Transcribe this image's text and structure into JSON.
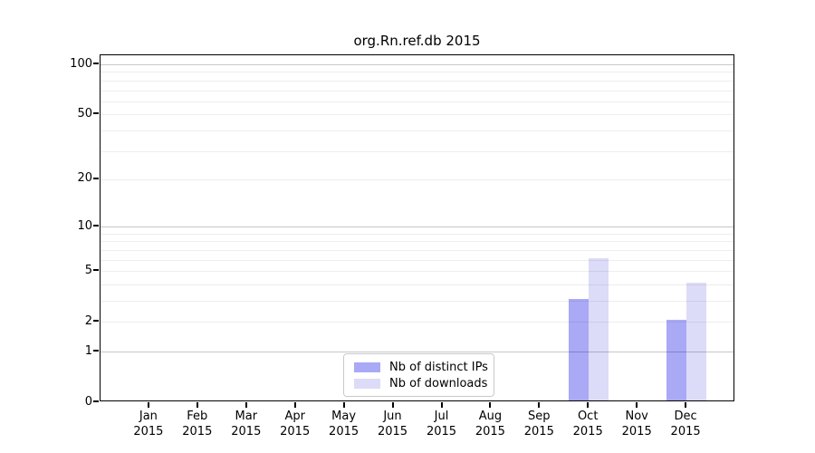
{
  "chart_data": {
    "type": "bar",
    "title": "org.Rn.ref.db 2015",
    "year_label": "2015",
    "categories": [
      "Jan",
      "Feb",
      "Mar",
      "Apr",
      "May",
      "Jun",
      "Jul",
      "Aug",
      "Sep",
      "Oct",
      "Nov",
      "Dec"
    ],
    "series": [
      {
        "name": "Nb of distinct IPs",
        "color": "#a9a9f6",
        "values": [
          0,
          0,
          0,
          0,
          0,
          0,
          0,
          0,
          0,
          3,
          0,
          2
        ]
      },
      {
        "name": "Nb of downloads",
        "color": "#dcdcf8",
        "values": [
          0,
          0,
          0,
          0,
          0,
          0,
          0,
          0,
          0,
          6,
          0,
          4
        ]
      }
    ],
    "xlabel": "",
    "ylabel": "",
    "y_axis": {
      "scale": "log1p",
      "tick_values": [
        0,
        1,
        2,
        5,
        10,
        20,
        50,
        100
      ],
      "tick_labels": [
        "0",
        "1",
        "2",
        "5",
        "10",
        "20",
        "50",
        "100"
      ],
      "major_gridlines": [
        1,
        10,
        100
      ],
      "minor_gridlines": [
        2,
        3,
        4,
        5,
        6,
        7,
        8,
        9,
        20,
        30,
        40,
        50,
        60,
        70,
        80,
        90
      ],
      "ylim_top_value": 101
    },
    "legend": {
      "position": "bottom-center",
      "entries": [
        "Nb of distinct IPs",
        "Nb of downloads"
      ]
    },
    "grid": "on"
  }
}
